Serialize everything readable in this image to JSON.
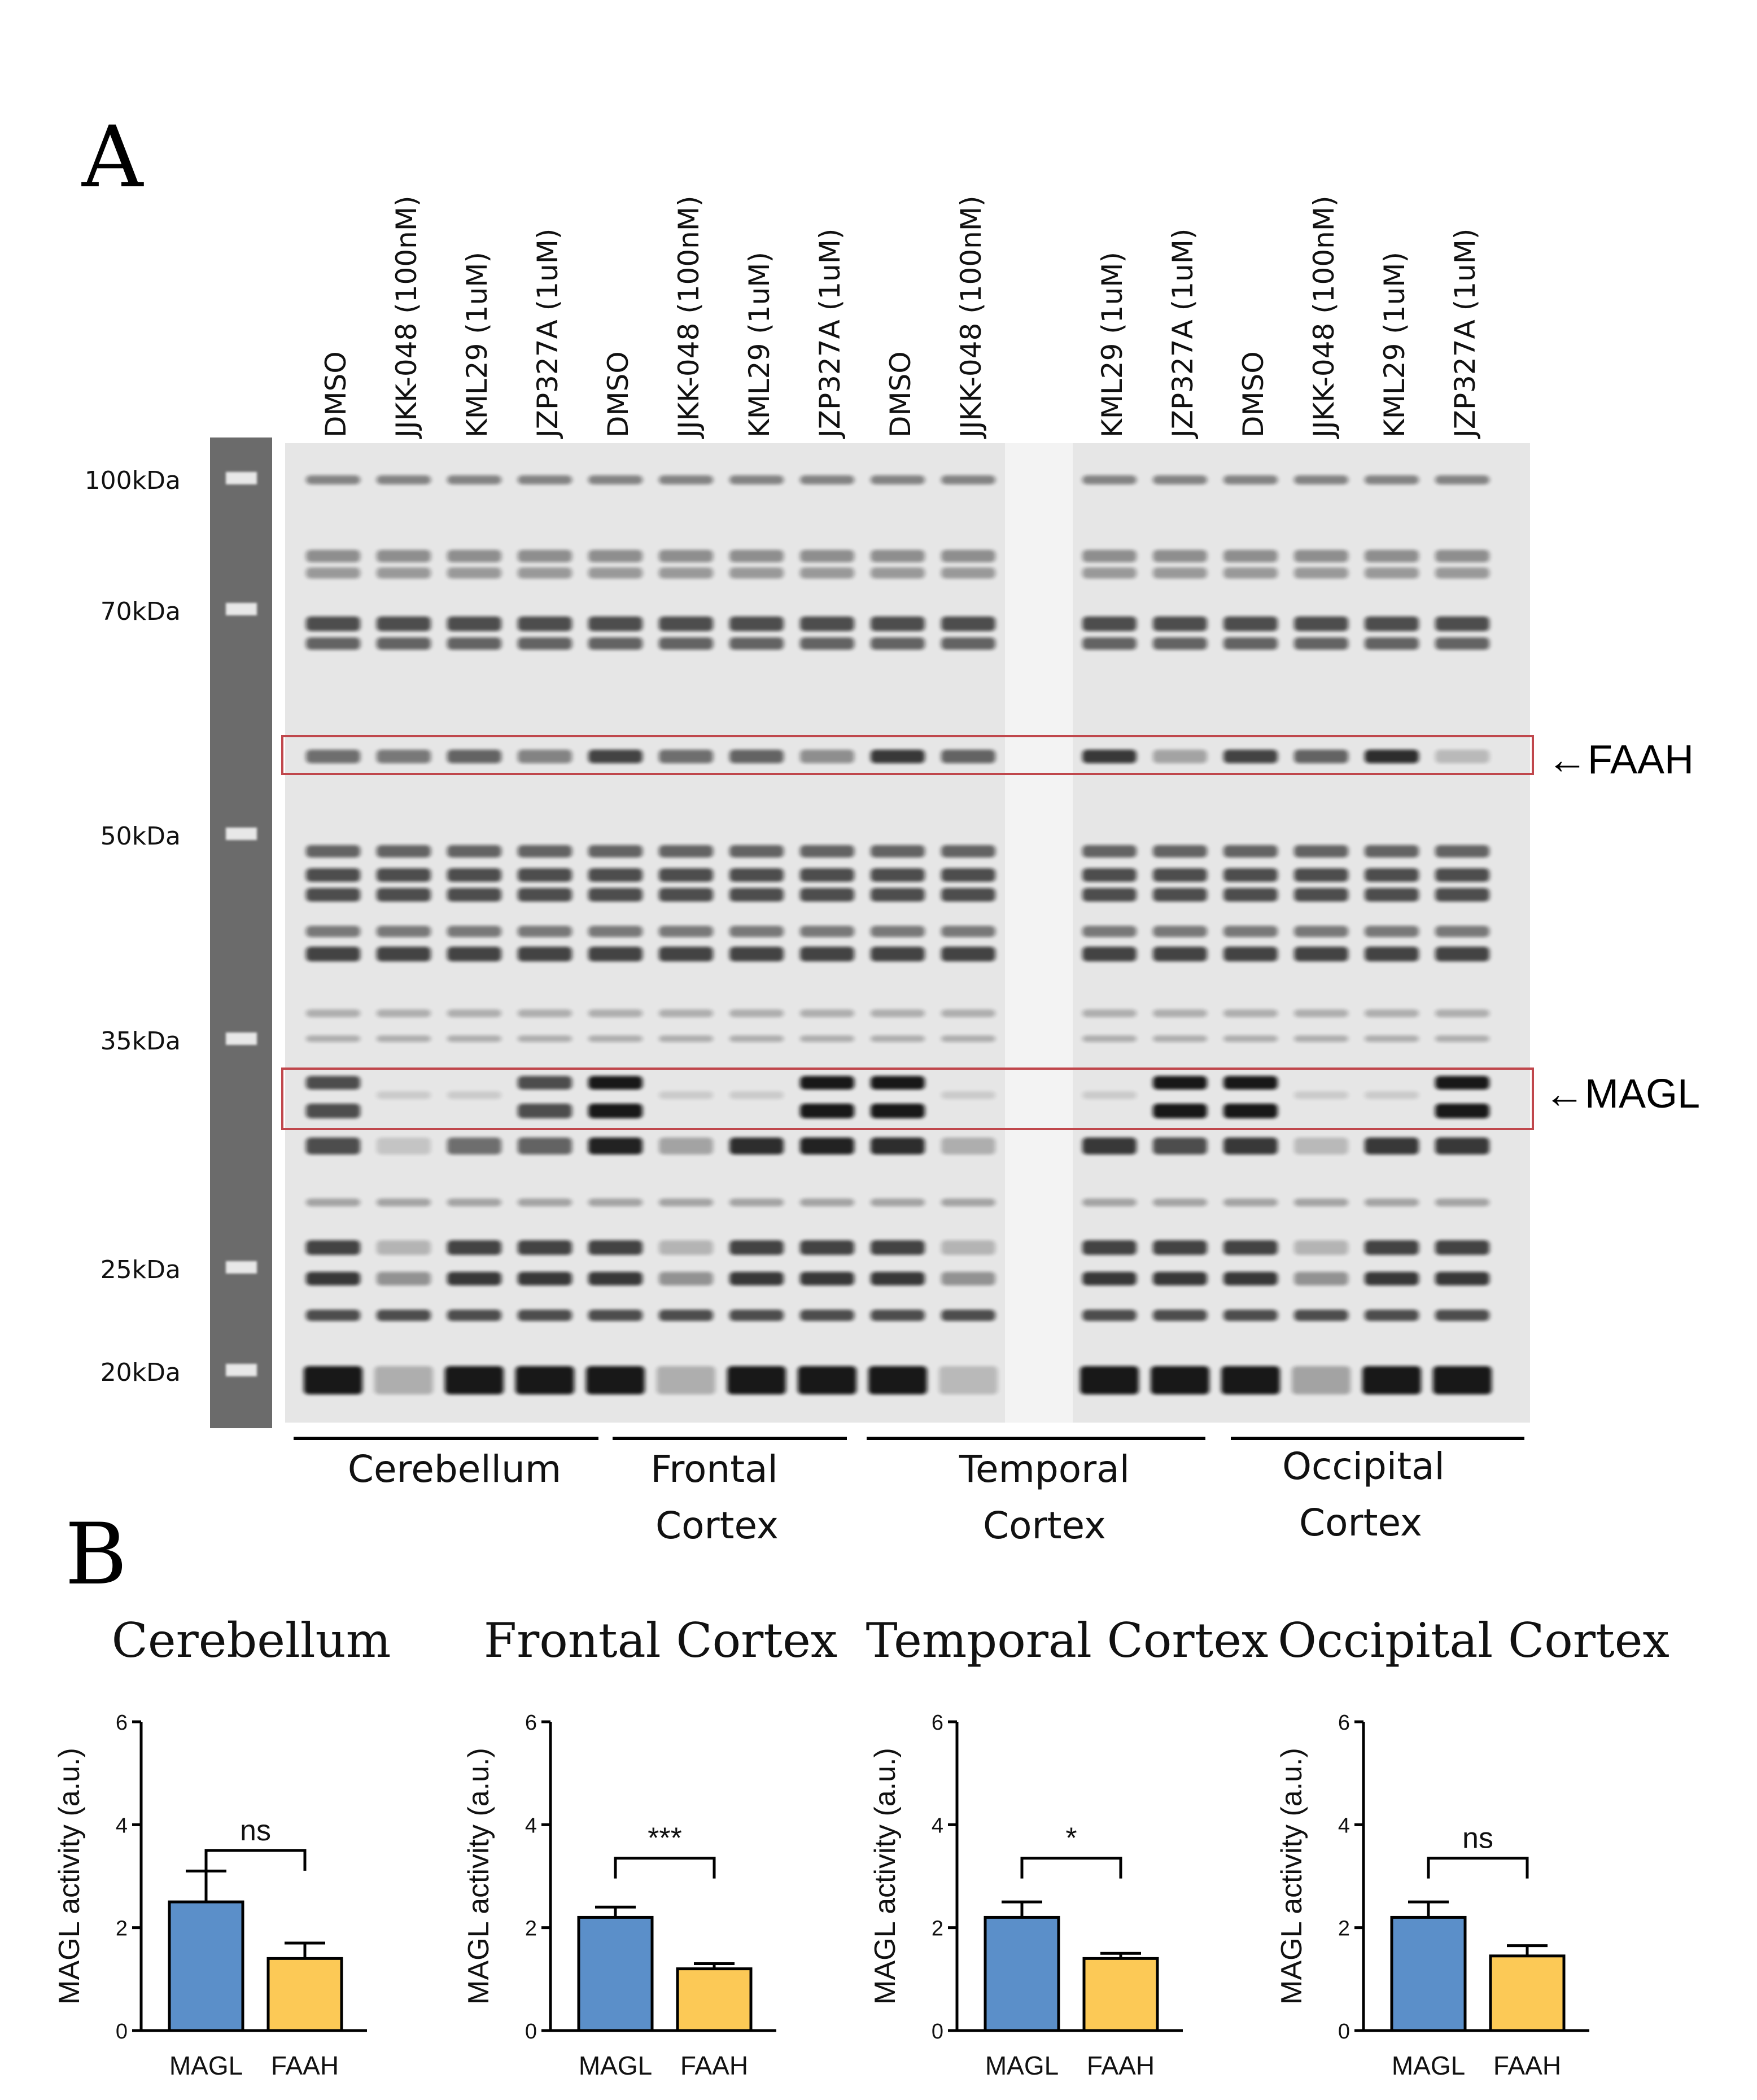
{
  "panel_a": {
    "label": "A",
    "lanes": [
      "DMSO",
      "JJKK-048 (100nM)",
      "KML29 (1uM)",
      "JZP327A (1uM)",
      "DMSO",
      "JJKK-048 (100nM)",
      "KML29 (1uM)",
      "JZP327A (1uM)",
      "DMSO",
      "JJKK-048 (100nM)",
      "",
      "KML29 (1uM)",
      "JZP327A (1uM)",
      "DMSO",
      "JJKK-048 (100nM)",
      "KML29 (1uM)",
      "JZP327A (1uM)"
    ],
    "markers": [
      "100kDa",
      "70kDa",
      "50kDa",
      "35kDa",
      "25kDa",
      "20kDa"
    ],
    "faah_label": "←FAAH",
    "magl_label": "←MAGL",
    "regions": [
      {
        "line1": "Cerebellum",
        "line2": ""
      },
      {
        "line1": "Frontal",
        "line2": "Cortex"
      },
      {
        "line1": "Temporal",
        "line2": "Cortex"
      },
      {
        "line1": "Occipital",
        "line2": "Cortex"
      }
    ]
  },
  "panel_b": {
    "label": "B"
  },
  "colors": {
    "magl": "#5b8fc9",
    "faah": "#fcc956",
    "box": "#c0474c"
  },
  "chart_data": [
    {
      "type": "bar",
      "title": "Cerebellum",
      "categories": [
        "MAGL",
        "FAAH"
      ],
      "values": [
        2.5,
        1.4
      ],
      "errors": [
        0.6,
        0.3
      ],
      "ylabel": "MAGL activity (a.u.)",
      "ylim": [
        0,
        6
      ],
      "yticks": [
        "0",
        "2",
        "4",
        "6"
      ],
      "significance": "ns"
    },
    {
      "type": "bar",
      "title": "Frontal Cortex",
      "categories": [
        "MAGL",
        "FAAH"
      ],
      "values": [
        2.2,
        1.2
      ],
      "errors": [
        0.2,
        0.1
      ],
      "ylabel": "MAGL activity (a.u.)",
      "ylim": [
        0,
        6
      ],
      "yticks": [
        "0",
        "2",
        "4",
        "6"
      ],
      "significance": "***"
    },
    {
      "type": "bar",
      "title": "Temporal Cortex",
      "categories": [
        "MAGL",
        "FAAH"
      ],
      "values": [
        2.2,
        1.4
      ],
      "errors": [
        0.3,
        0.1
      ],
      "ylabel": "MAGL activity (a.u.)",
      "ylim": [
        0,
        6
      ],
      "yticks": [
        "0",
        "2",
        "4",
        "6"
      ],
      "significance": "*"
    },
    {
      "type": "bar",
      "title": "Occipital Cortex",
      "categories": [
        "MAGL",
        "FAAH"
      ],
      "values": [
        2.2,
        1.45
      ],
      "errors": [
        0.3,
        0.2
      ],
      "ylabel": "MAGL activity (a.u.)",
      "ylim": [
        0,
        6
      ],
      "yticks": [
        "0",
        "2",
        "4",
        "6"
      ],
      "significance": "ns"
    }
  ]
}
